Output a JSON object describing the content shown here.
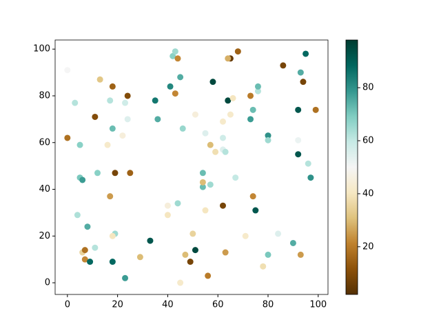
{
  "chart_data": {
    "type": "scatter",
    "colormap": "BrBG",
    "x": [
      0,
      3,
      0,
      5,
      5,
      6,
      4,
      8,
      6,
      7,
      7,
      9,
      11,
      12,
      11,
      13,
      18,
      17,
      18,
      16,
      22,
      23,
      24,
      24,
      19,
      25,
      17,
      19,
      18,
      18,
      23,
      29,
      33,
      35,
      36,
      41,
      42,
      43,
      44,
      43,
      45,
      46,
      40,
      40,
      44,
      45,
      47,
      49,
      50,
      51,
      51,
      54,
      54,
      54,
      55,
      55,
      57,
      57,
      56,
      58,
      59,
      62,
      62,
      62,
      63,
      64,
      65,
      64,
      66,
      65,
      68,
      67,
      62,
      63,
      71,
      73,
      74,
      73,
      76,
      76,
      74,
      75,
      78,
      80,
      80,
      80,
      84,
      86,
      90,
      93,
      92,
      92,
      92,
      93,
      94,
      95,
      96,
      97,
      99
    ],
    "y": [
      91,
      77,
      62,
      59,
      45,
      44,
      29,
      24,
      13,
      14,
      10,
      9,
      15,
      47,
      71,
      87,
      84,
      78,
      66,
      59,
      63,
      77,
      80,
      70,
      47,
      47,
      37,
      21,
      20,
      9,
      2,
      11,
      18,
      78,
      70,
      84,
      97,
      99,
      96,
      81,
      88,
      66,
      33,
      29,
      34,
      0,
      12,
      9,
      21,
      14,
      72,
      47,
      41,
      43,
      31,
      64,
      59,
      42,
      3,
      86,
      56,
      62,
      69,
      57,
      56,
      78,
      96,
      96,
      79,
      72,
      99,
      45,
      33,
      13,
      20,
      70,
      74,
      80,
      82,
      84,
      37,
      31,
      7,
      12,
      63,
      61,
      21,
      93,
      17,
      12,
      61,
      55,
      74,
      90,
      86,
      98,
      51,
      45,
      74
    ],
    "c": [
      50,
      62,
      18,
      68,
      70,
      78,
      63,
      75,
      35,
      18,
      22,
      88,
      62,
      68,
      10,
      32,
      15,
      62,
      72,
      42,
      45,
      58,
      10,
      55,
      8,
      15,
      25,
      65,
      40,
      88,
      78,
      30,
      92,
      85,
      75,
      82,
      68,
      65,
      22,
      22,
      75,
      66,
      45,
      40,
      65,
      42,
      30,
      8,
      35,
      95,
      45,
      72,
      72,
      30,
      40,
      55,
      30,
      65,
      20,
      95,
      38,
      58,
      42,
      55,
      62,
      95,
      5,
      28,
      40,
      42,
      15,
      60,
      8,
      25,
      42,
      78,
      72,
      20,
      62,
      72,
      22,
      92,
      38,
      70,
      80,
      65,
      55,
      8,
      75,
      25,
      52,
      92,
      92,
      75,
      8,
      88,
      62,
      80,
      18
    ],
    "xlim": [
      -4.9,
      103.9
    ],
    "ylim": [
      -5,
      103.9
    ],
    "clim": [
      2,
      98
    ],
    "xticks": [
      0,
      20,
      40,
      60,
      80,
      100
    ],
    "yticks": [
      0,
      20,
      40,
      60,
      80,
      100
    ],
    "cticks": [
      20,
      40,
      60,
      80
    ]
  }
}
